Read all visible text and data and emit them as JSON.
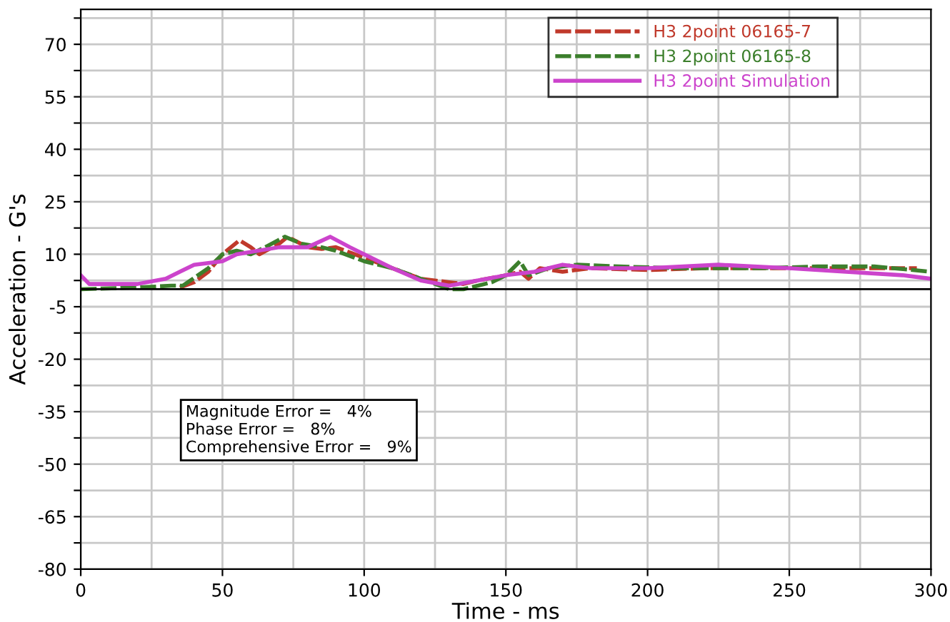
{
  "chart_data": {
    "type": "line",
    "xlabel": "Time - ms",
    "ylabel": "Acceleration - G's",
    "xlim": [
      0,
      300
    ],
    "xticks": [
      0,
      50,
      100,
      150,
      200,
      250,
      300
    ],
    "ylim": [
      -80,
      80
    ],
    "yticks": [
      -80,
      {
        "value": -72.5,
        "label": null
      },
      -65,
      {
        "value": -57.5,
        "label": null
      },
      -50,
      {
        "value": -42.5,
        "label": null
      },
      -35,
      {
        "value": -27.5,
        "label": null
      },
      -20,
      {
        "value": -12.5,
        "label": null
      },
      -5,
      {
        "value": 2.5,
        "label": null
      },
      10,
      {
        "value": 17.5,
        "label": null
      },
      25,
      {
        "value": 32.5,
        "label": null
      },
      40,
      {
        "value": 47.5,
        "label": null
      },
      55,
      {
        "value": 62.5,
        "label": null
      },
      70,
      {
        "value": 77.5,
        "label": null
      }
    ],
    "grid": true,
    "legend": "top right",
    "ref_lines": [
      {
        "axis": "y",
        "value": 0,
        "color": "#000000"
      }
    ],
    "annotations": [
      "Magnitude Error =   4%",
      "Phase Error =   8%",
      "Comprehensive Error =   9%"
    ],
    "series": [
      {
        "name": "H3 2point 06165-7",
        "color": "#c0392b",
        "line_style": "dashed",
        "x": [
          35,
          40,
          45,
          50,
          56,
          60,
          63,
          70,
          73,
          80,
          85,
          90,
          100,
          110,
          120,
          130,
          135,
          140,
          150,
          155,
          158,
          162,
          170,
          180,
          200,
          220,
          250,
          270,
          295
        ],
        "values": [
          0.5,
          2,
          5,
          10,
          14,
          12,
          10,
          13,
          15,
          12,
          11.5,
          12,
          9,
          6,
          3,
          2,
          1.5,
          2.5,
          4,
          5,
          3,
          6,
          5,
          6,
          5.5,
          6,
          6,
          6,
          6
        ]
      },
      {
        "name": "H3 2point 06165-8",
        "color": "#3c7f2c",
        "line_style": "dashed",
        "x": [
          0,
          20,
          32,
          36,
          45,
          50,
          55,
          60,
          65,
          72,
          78,
          85,
          90,
          100,
          110,
          120,
          130,
          135,
          145,
          150,
          155,
          158,
          165,
          175,
          190,
          210,
          240,
          260,
          280,
          300
        ],
        "values": [
          0,
          0.5,
          1,
          1,
          6,
          10,
          11,
          10,
          12,
          15,
          13,
          12,
          11,
          8,
          6,
          3,
          0,
          0,
          2,
          4,
          8,
          4,
          6,
          7,
          6.5,
          6,
          6,
          6.5,
          6.5,
          5
        ]
      },
      {
        "name": "H3 2point Simulation",
        "color": "#cc44cc",
        "line_style": "solid",
        "x": [
          0,
          3,
          20,
          30,
          40,
          50,
          55,
          70,
          80,
          88,
          95,
          100,
          110,
          120,
          130,
          140,
          150,
          160,
          170,
          180,
          200,
          225,
          250,
          270,
          290,
          300
        ],
        "values": [
          4,
          1.5,
          1.5,
          3,
          7,
          8,
          10,
          12,
          12,
          15,
          12,
          10,
          6,
          2.5,
          1,
          2.5,
          4,
          5,
          7,
          6,
          6,
          7,
          6,
          5,
          4,
          3
        ]
      }
    ]
  }
}
